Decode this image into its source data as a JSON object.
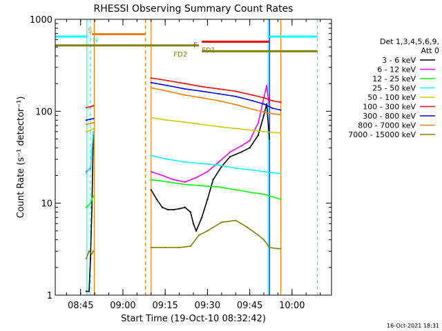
{
  "chart_data": {
    "type": "line",
    "title": "RHESSI Observing Summary Count Rates",
    "xlabel": "Start Time (19-Oct-10 08:32:42)",
    "ylabel": "Count Rate (s⁻¹ detector⁻¹)",
    "y_scale": "log",
    "ylim": [
      1,
      1000
    ],
    "xlim": [
      "08:36",
      "10:14"
    ],
    "y_ticks": [
      {
        "v": 1,
        "label": "1"
      },
      {
        "v": 10,
        "label": "10"
      },
      {
        "v": 100,
        "label": "100"
      },
      {
        "v": 1000,
        "label": "1000"
      }
    ],
    "x_ticks": [
      {
        "t": "08:45",
        "label": "08:45"
      },
      {
        "t": "09:00",
        "label": "09:00"
      },
      {
        "t": "09:15",
        "label": "09:15"
      },
      {
        "t": "09:30",
        "label": "09:30"
      },
      {
        "t": "09:45",
        "label": "09:45"
      },
      {
        "t": "10:00",
        "label": "10:00"
      }
    ],
    "legend_title": [
      "Det 1,3,4,5,6,9,",
      "Att 0"
    ],
    "legend_position": "right",
    "series": [
      {
        "name": "3 - 6 keV",
        "color": "#000000",
        "segments": [
          {
            "x": [
              "08:47:00",
              "08:48:00",
              "08:48:30",
              "08:49:00",
              "08:49:30"
            ],
            "y": [
              1.1,
              1.1,
              2.5,
              9,
              55
            ]
          },
          {
            "x": [
              "09:10:00",
              "09:12:00",
              "09:14:00",
              "09:16:00",
              "09:18:00",
              "09:20:00",
              "09:22:00",
              "09:24:00",
              "09:25:00",
              "09:26:00",
              "09:28:00",
              "09:30:00",
              "09:32:00",
              "09:35:00",
              "09:38:00",
              "09:42:00",
              "09:45:00",
              "09:48:00",
              "09:50:00",
              "09:51:00",
              "09:52:00"
            ],
            "y": [
              14,
              11,
              9,
              8.5,
              8.5,
              8.7,
              9,
              8,
              6,
              5,
              7,
              11,
              18,
              25,
              32,
              36,
              40,
              55,
              90,
              120,
              50
            ]
          }
        ]
      },
      {
        "name": "6 - 12 keV",
        "color": "#ff00ff",
        "segments": [
          {
            "x": [
              "08:47:00",
              "08:48:30",
              "08:49:30"
            ],
            "y": [
              22,
              24,
              60
            ]
          },
          {
            "x": [
              "09:10:00",
              "09:14:00",
              "09:18:00",
              "09:22:00",
              "09:26:00",
              "09:30:00",
              "09:34:00",
              "09:38:00",
              "09:42:00",
              "09:45:00",
              "09:48:00",
              "09:50:00",
              "09:51:00",
              "09:52:00"
            ],
            "y": [
              22,
              20,
              18,
              17,
              19,
              22,
              28,
              36,
              42,
              48,
              75,
              140,
              190,
              110
            ]
          }
        ]
      },
      {
        "name": "12 - 25 keV",
        "color": "#00ff00",
        "segments": [
          {
            "x": [
              "08:47:00",
              "08:48:30",
              "08:49:30"
            ],
            "y": [
              9,
              10,
              12
            ]
          },
          {
            "x": [
              "09:10:00",
              "09:16:00",
              "09:22:00",
              "09:28:00",
              "09:34:00",
              "09:40:00",
              "09:46:00",
              "09:50:00",
              "09:52:00",
              "09:54:00",
              "09:56:00"
            ],
            "y": [
              18,
              17,
              16,
              15.5,
              15,
              14,
              13,
              12.5,
              12,
              11.5,
              11
            ]
          }
        ]
      },
      {
        "name": "25 - 50 keV",
        "color": "#00ffff",
        "segments": [
          {
            "x": [
              "08:47:00",
              "08:48:30",
              "08:49:30"
            ],
            "y": [
              21,
              25,
              60
            ]
          },
          {
            "x": [
              "09:10:00",
              "09:16:00",
              "09:22:00",
              "09:28:00",
              "09:34:00",
              "09:40:00",
              "09:46:00",
              "09:50:00",
              "09:53:00",
              "09:56:00"
            ],
            "y": [
              33,
              30,
              28,
              27,
              26,
              24,
              23,
              22,
              21.5,
              21
            ]
          }
        ]
      },
      {
        "name": "50 - 100 keV",
        "color": "#cccc00",
        "segments": [
          {
            "x": [
              "08:47:00",
              "08:48:30",
              "08:49:30"
            ],
            "y": [
              60,
              62,
              65
            ]
          },
          {
            "x": [
              "09:10:00",
              "09:16:00",
              "09:22:00",
              "09:28:00",
              "09:34:00",
              "09:40:00",
              "09:46:00",
              "09:50:00",
              "09:53:00",
              "09:56:00"
            ],
            "y": [
              85,
              80,
              76,
              72,
              68,
              65,
              62,
              60,
              59,
              58
            ]
          }
        ]
      },
      {
        "name": "100 - 300 keV",
        "color": "#ff0000",
        "segments": [
          {
            "x": [
              "08:47:00",
              "08:48:30",
              "08:49:30"
            ],
            "y": [
              110,
              112,
              115
            ]
          },
          {
            "x": [
              "09:10:00",
              "09:16:00",
              "09:22:00",
              "09:28:00",
              "09:34:00",
              "09:40:00",
              "09:46:00",
              "09:50:00",
              "09:53:00",
              "09:56:00"
            ],
            "y": [
              230,
              215,
              200,
              185,
              175,
              165,
              150,
              140,
              130,
              125
            ]
          }
        ]
      },
      {
        "name": "300 - 800 keV",
        "color": "#0000ff",
        "segments": [
          {
            "x": [
              "08:47:00",
              "08:48:30",
              "08:49:30"
            ],
            "y": [
              80,
              82,
              83
            ]
          },
          {
            "x": [
              "09:10:00",
              "09:16:00",
              "09:22:00",
              "09:28:00",
              "09:34:00",
              "09:40:00",
              "09:46:00",
              "09:50:00",
              "09:53:00",
              "09:56:00"
            ],
            "y": [
              205,
              190,
              175,
              165,
              155,
              145,
              130,
              120,
              108,
              103
            ]
          }
        ]
      },
      {
        "name": "800 - 7000 keV",
        "color": "#ff8000",
        "segments": [
          {
            "x": [
              "08:47:00",
              "08:48:30",
              "08:49:30"
            ],
            "y": [
              72,
              74,
              75
            ]
          },
          {
            "x": [
              "09:10:00",
              "09:16:00",
              "09:22:00",
              "09:28:00",
              "09:34:00",
              "09:40:00",
              "09:46:00",
              "09:50:00",
              "09:53:00",
              "09:56:00"
            ],
            "y": [
              180,
              165,
              150,
              140,
              130,
              118,
              105,
              98,
              94,
              92
            ]
          }
        ]
      },
      {
        "name": "7000 - 15000 keV",
        "color": "#808000",
        "segments": [
          {
            "x": [
              "08:47:00",
              "08:48:00",
              "08:49:00",
              "08:49:30"
            ],
            "y": [
              2.5,
              3.0,
              2.8,
              3.0
            ]
          },
          {
            "x": [
              "09:10:00",
              "09:15:00",
              "09:20:00",
              "09:24:00",
              "09:27:00",
              "09:30:00",
              "09:35:00",
              "09:40:00",
              "09:44:00",
              "09:48:00",
              "09:50:00",
              "09:52:00",
              "09:55:00",
              "09:56:00"
            ],
            "y": [
              3.3,
              3.3,
              3.3,
              3.4,
              4.5,
              5.0,
              6.2,
              6.5,
              5.5,
              4.5,
              4.0,
              3.3,
              3.2,
              3.2
            ]
          }
        ]
      }
    ],
    "vlines": [
      {
        "t": "08:47:15",
        "color": "#00ffff",
        "dash": false
      },
      {
        "t": "08:48:30",
        "color": "#00ffff",
        "dash": true
      },
      {
        "t": "08:49:50",
        "color": "#ff8000",
        "dash": false
      },
      {
        "t": "09:08:00",
        "color": "#ff8000",
        "dash": true
      },
      {
        "t": "09:10:00",
        "color": "#ff8000",
        "dash": false
      },
      {
        "t": "09:51:30",
        "color": "#00ffff",
        "dash": false
      },
      {
        "t": "09:52:00",
        "color": "#0000ff",
        "dash": false
      },
      {
        "t": "09:56:00",
        "color": "#ff8000",
        "dash": false
      },
      {
        "t": "10:09:00",
        "color": "#00ffff",
        "dash": true
      }
    ],
    "bars": [
      {
        "label": "S",
        "color": "#ff8000",
        "t0": "08:49:00",
        "t1": "09:08:00",
        "level": 690,
        "label_t": "08:47:30",
        "label_color": "#ff8000"
      },
      {
        "label": "N",
        "color": "#00ffff",
        "t0": "08:36:00",
        "t1": "08:47:15",
        "level": 650,
        "label_t": "08:49:15",
        "label_color": "#00ffff"
      },
      {
        "label": "N",
        "color": "#00ffff",
        "t0": "09:51:30",
        "t1": "10:09:00",
        "level": 650,
        "label_t": null,
        "label_color": "#00ffff"
      },
      {
        "label": "F",
        "color": "#ff0000",
        "t0": "09:28:00",
        "t1": "09:52:00",
        "level": 570,
        "label_t": "09:25:00",
        "label_color": "#ff0000"
      },
      {
        "label": "FD1",
        "color": "#808000",
        "t0": "08:36:00",
        "t1": "09:27:00",
        "level": 520,
        "label_t": "09:28:00",
        "label_color": "#808000"
      },
      {
        "label": "FD2",
        "color": "#808000",
        "t0": "09:28:00",
        "t1": "10:09:00",
        "level": 450,
        "label_t": "09:18:00",
        "label_color": "#808000"
      }
    ],
    "timestamp": "16-Oct-2021 18:31"
  }
}
